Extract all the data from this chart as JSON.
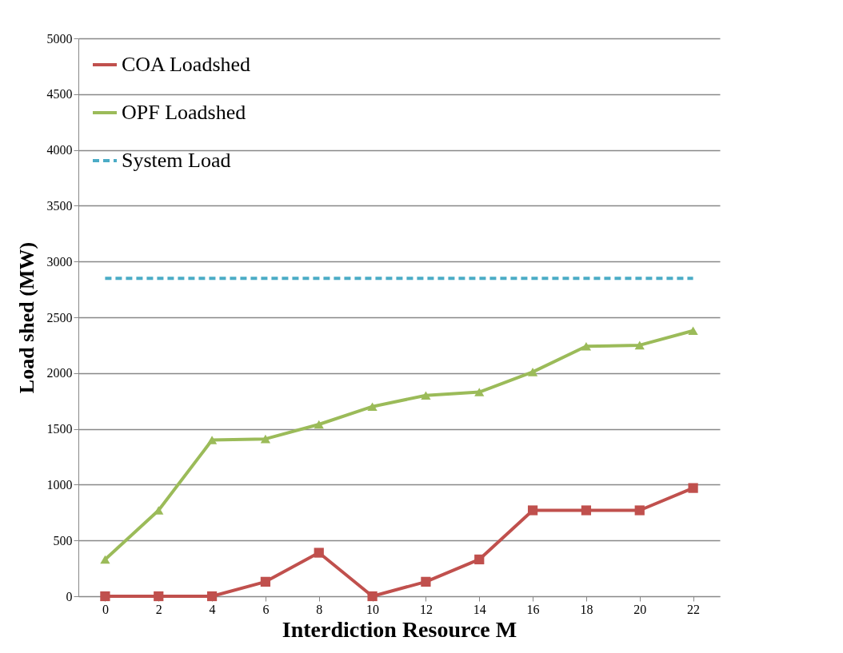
{
  "chart_data": {
    "type": "line",
    "xlabel": "Interdiction Resource M",
    "ylabel": "Load shed (MW)",
    "categories": [
      "0",
      "2",
      "4",
      "6",
      "8",
      "10",
      "12",
      "14",
      "16",
      "18",
      "20",
      "22"
    ],
    "series": [
      {
        "name": "COA Loadshed",
        "color": "#c0504d",
        "marker": "square",
        "line_style": "solid",
        "values": [
          0,
          0,
          0,
          130,
          390,
          0,
          130,
          330,
          770,
          770,
          770,
          970
        ]
      },
      {
        "name": "OPF Loadshed",
        "color": "#9bbb59",
        "marker": "triangle",
        "line_style": "solid",
        "values": [
          330,
          770,
          1400,
          1410,
          1540,
          1700,
          1800,
          1830,
          2010,
          2240,
          2250,
          2380
        ]
      },
      {
        "name": "System Load",
        "color": "#4bacc6",
        "marker": "none",
        "line_style": "dashed",
        "values": [
          2850,
          2850,
          2850,
          2850,
          2850,
          2850,
          2850,
          2850,
          2850,
          2850,
          2850,
          2850
        ]
      }
    ],
    "ylim": [
      0,
      5000
    ],
    "yticks": [
      0,
      500,
      1000,
      1500,
      2000,
      2500,
      3000,
      3500,
      4000,
      4500,
      5000
    ],
    "grid": "y",
    "legend": "top left"
  }
}
